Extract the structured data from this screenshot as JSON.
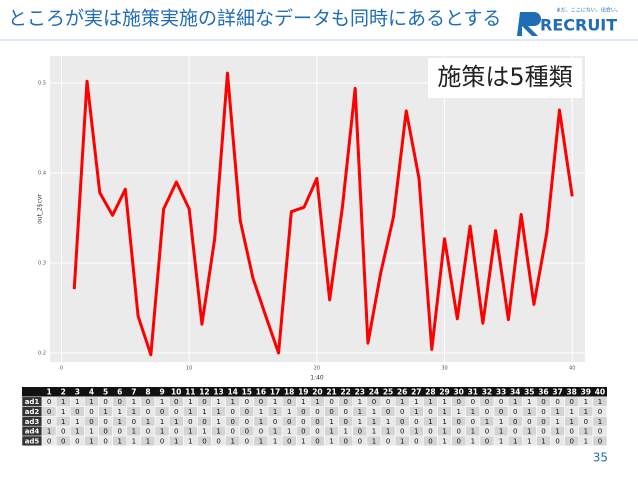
{
  "slide": {
    "title": "ところが実は施策実施の詳細なデータも同時にあるとする",
    "logo": "RECRUIT",
    "tagline": "まだ、ここにない、出会い。",
    "page_number": "35"
  },
  "chart_data": {
    "type": "line",
    "annotation": "施策は5種類",
    "x_label": "1:40",
    "y_label": "out_2$cvr",
    "x": [
      1,
      2,
      3,
      4,
      5,
      6,
      7,
      8,
      9,
      10,
      11,
      12,
      13,
      14,
      15,
      16,
      17,
      18,
      19,
      20,
      21,
      22,
      23,
      24,
      25,
      26,
      27,
      28,
      29,
      30,
      31,
      32,
      33,
      34,
      35,
      36,
      37,
      38,
      39,
      40
    ],
    "series": [
      {
        "color": "#ff0000",
        "values": [
          0.271,
          0.502,
          0.378,
          0.353,
          0.382,
          0.241,
          0.198,
          0.36,
          0.39,
          0.36,
          0.232,
          0.327,
          0.511,
          0.347,
          0.283,
          0.241,
          0.2,
          0.357,
          0.362,
          0.394,
          0.259,
          0.362,
          0.494,
          0.211,
          0.289,
          0.351,
          0.469,
          0.394,
          0.204,
          0.327,
          0.238,
          0.341,
          0.233,
          0.336,
          0.237,
          0.354,
          0.254,
          0.333,
          0.47,
          0.374
        ]
      }
    ],
    "xlim": [
      -0.9,
      41.0
    ],
    "ylim": [
      0.19,
      0.53
    ],
    "xticks": [
      0,
      10,
      20,
      30,
      40
    ],
    "yticks": [
      0.2,
      0.3,
      0.4,
      0.5
    ],
    "grid": true
  },
  "table": {
    "header": [
      1,
      2,
      3,
      4,
      5,
      6,
      7,
      8,
      9,
      10,
      11,
      12,
      13,
      14,
      15,
      16,
      17,
      18,
      19,
      20,
      21,
      22,
      23,
      24,
      25,
      26,
      27,
      28,
      29,
      30,
      31,
      32,
      33,
      34,
      35,
      36,
      37,
      38,
      39,
      40
    ],
    "rows": [
      {
        "label": "ad1",
        "values": [
          0,
          1,
          1,
          1,
          0,
          0,
          1,
          0,
          1,
          0,
          1,
          0,
          1,
          1,
          0,
          0,
          1,
          0,
          1,
          1,
          0,
          0,
          1,
          0,
          0,
          1,
          1,
          1,
          1,
          0,
          0,
          0,
          0,
          1,
          1,
          0,
          0,
          0,
          1,
          1
        ]
      },
      {
        "label": "ad2",
        "values": [
          0,
          1,
          0,
          0,
          1,
          1,
          1,
          0,
          0,
          0,
          1,
          1,
          1,
          0,
          0,
          1,
          1,
          1,
          0,
          0,
          0,
          0,
          1,
          1,
          0,
          0,
          1,
          0,
          1,
          1,
          1,
          0,
          0,
          0,
          1,
          0,
          1,
          1,
          1,
          0
        ]
      },
      {
        "label": "ad3",
        "values": [
          0,
          1,
          1,
          0,
          0,
          1,
          0,
          1,
          1,
          1,
          0,
          0,
          1,
          0,
          0,
          1,
          0,
          0,
          0,
          0,
          1,
          0,
          1,
          1,
          1,
          0,
          0,
          1,
          1,
          0,
          0,
          1,
          1,
          0,
          0,
          0,
          1,
          1,
          0,
          1
        ]
      },
      {
        "label": "ad4",
        "values": [
          1,
          0,
          1,
          1,
          0,
          0,
          1,
          0,
          1,
          0,
          1,
          1,
          1,
          0,
          0,
          0,
          1,
          1,
          0,
          0,
          1,
          1,
          0,
          1,
          1,
          0,
          1,
          0,
          1,
          0,
          1,
          0,
          1,
          0,
          1,
          0,
          1,
          0,
          1,
          0
        ]
      },
      {
        "label": "ad5",
        "values": [
          0,
          0,
          0,
          1,
          0,
          1,
          1,
          1,
          0,
          1,
          1,
          0,
          0,
          1,
          0,
          1,
          1,
          0,
          1,
          0,
          1,
          0,
          0,
          1,
          0,
          1,
          0,
          0,
          1,
          0,
          1,
          0,
          1,
          1,
          1,
          1,
          0,
          0,
          1,
          0
        ]
      }
    ]
  }
}
